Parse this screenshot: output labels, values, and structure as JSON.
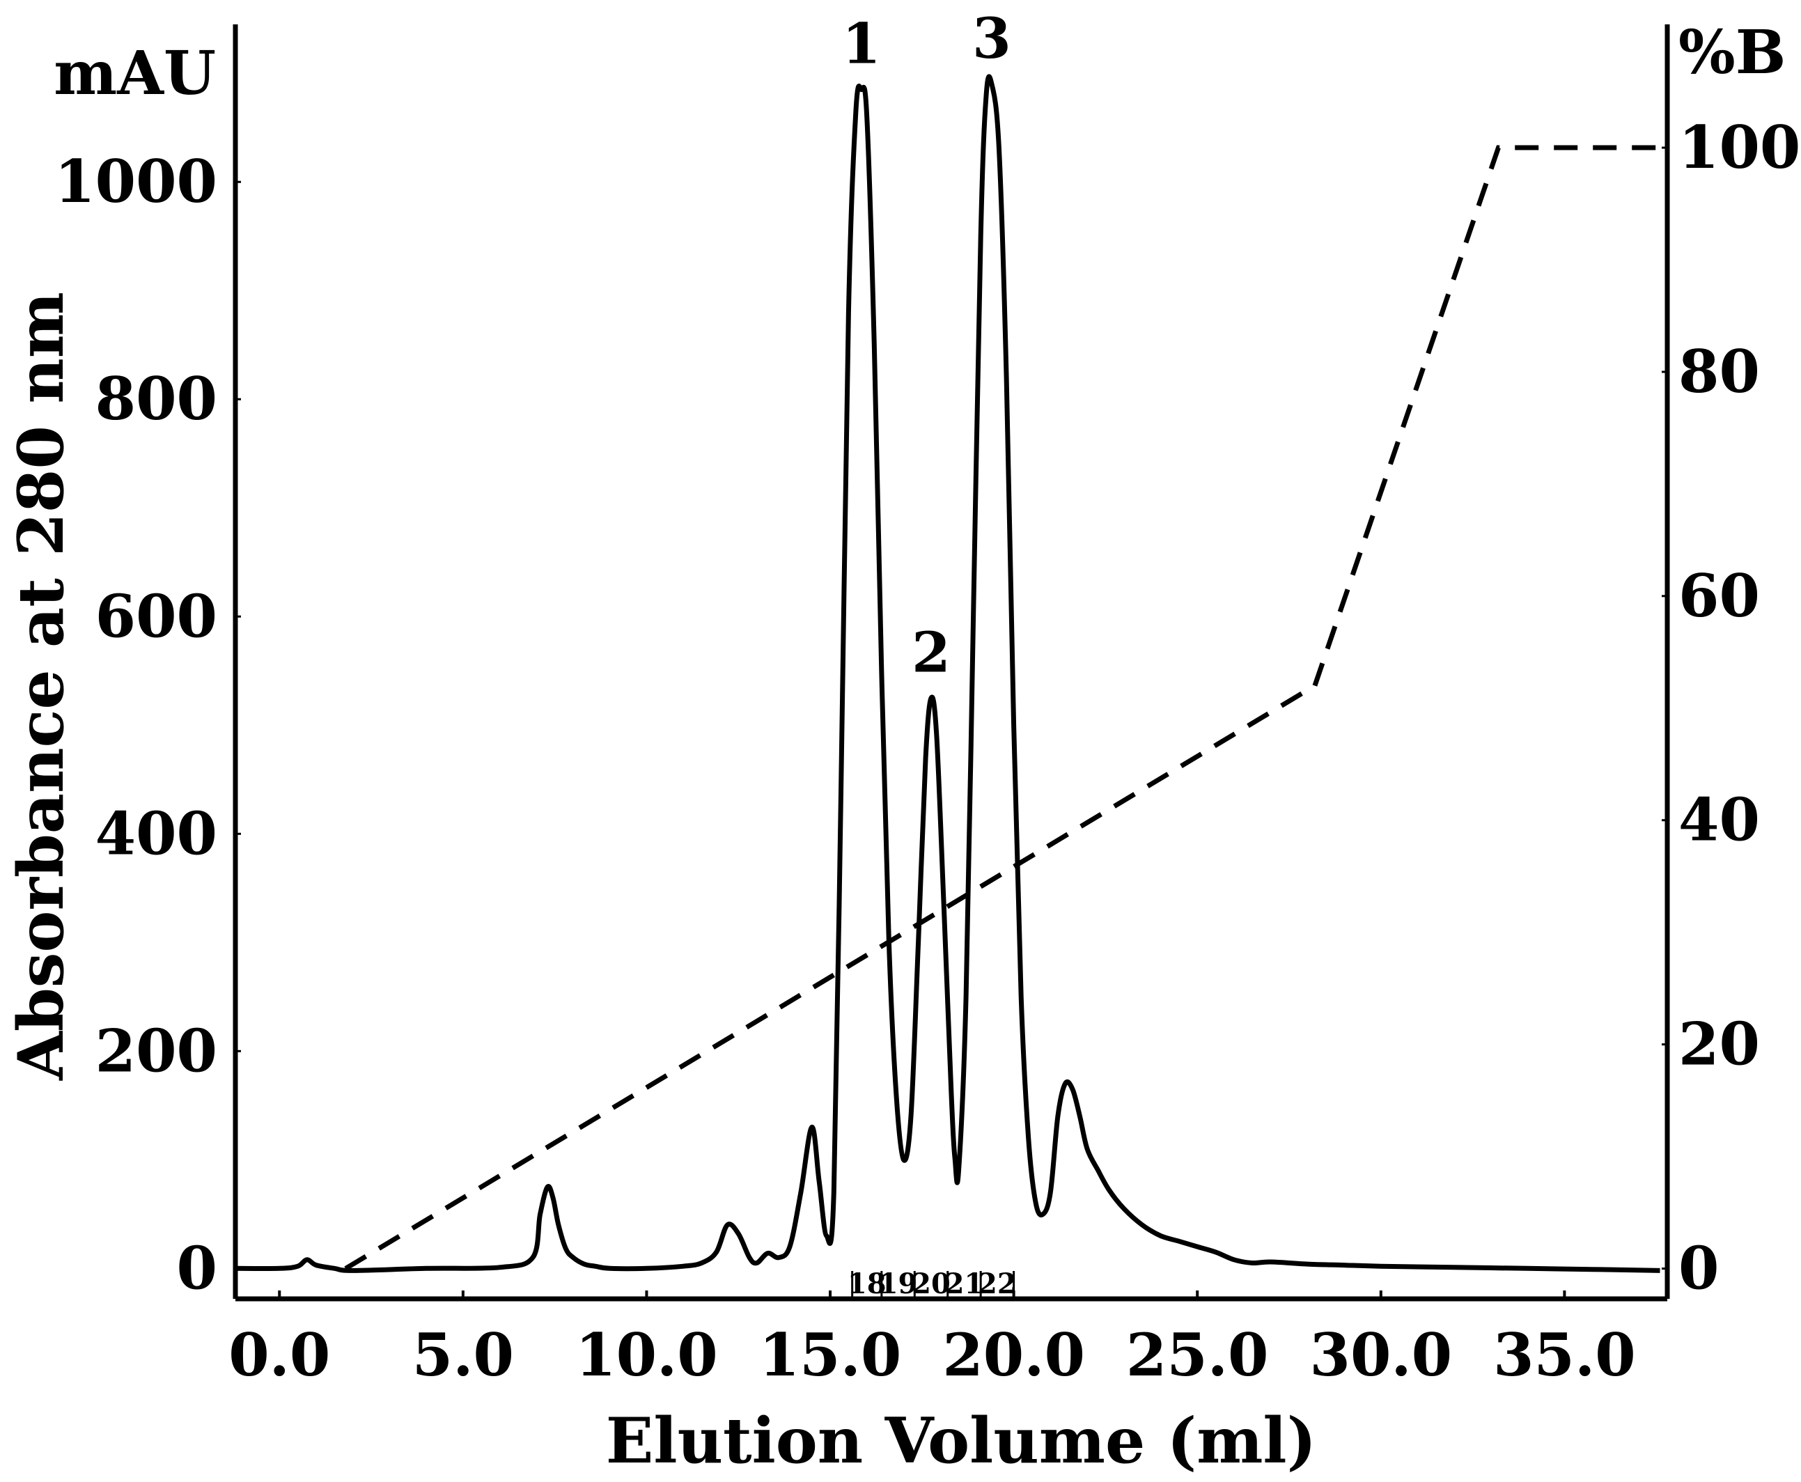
{
  "chart_data": {
    "type": "line",
    "title": "",
    "xlabel": "Elution Volume (ml)",
    "ylabel": "Absorbance at  280 nm",
    "y_unit": "mAU",
    "y2_unit": "%B",
    "xlim": [
      -1.2,
      37.8
    ],
    "ylim": [
      -28,
      1145
    ],
    "y2lim": [
      -2.7,
      111.0
    ],
    "x_ticks": [
      0,
      5,
      10,
      15,
      20,
      25,
      30,
      35
    ],
    "x_tick_labels": [
      "0.0",
      "5.0",
      "10.0",
      "15.0",
      "20.0",
      "25.0",
      "30.0",
      "35.0"
    ],
    "y_ticks": [
      0,
      200,
      400,
      600,
      800,
      1000
    ],
    "y_tick_labels": [
      "0",
      "200",
      "400",
      "600",
      "800",
      "1000"
    ],
    "y2_ticks": [
      0,
      20,
      40,
      60,
      80,
      100
    ],
    "y2_tick_labels": [
      "0",
      "20",
      "40",
      "60",
      "80",
      "100"
    ],
    "grid": false,
    "legend": "none",
    "series": [
      {
        "axis": "left",
        "style": "solid",
        "color": "#000000",
        "x": [
          -1.2,
          0.0,
          0.5,
          0.75,
          1.0,
          1.5,
          2.0,
          4.0,
          6.0,
          6.9,
          7.1,
          7.3,
          7.45,
          7.6,
          7.8,
          8.0,
          8.3,
          8.6,
          9.0,
          10.0,
          11.0,
          11.5,
          11.9,
          12.2,
          12.5,
          12.8,
          13.0,
          13.3,
          13.6,
          13.9,
          14.2,
          14.5,
          14.7,
          14.9,
          15.1,
          15.3,
          15.5,
          15.7,
          15.85,
          16.0,
          16.2,
          16.4,
          16.6,
          16.8,
          17.0,
          17.2,
          17.4,
          17.6,
          17.75,
          17.9,
          18.1,
          18.3,
          18.4,
          18.5,
          18.7,
          18.9,
          19.1,
          19.25,
          19.4,
          19.6,
          19.8,
          20.0,
          20.2,
          20.4,
          20.6,
          20.8,
          21.0,
          21.2,
          21.4,
          21.6,
          21.8,
          22.0,
          22.3,
          22.6,
          23.0,
          23.5,
          24.0,
          24.5,
          25.0,
          25.5,
          26.0,
          26.5,
          27.0,
          28.0,
          29.0,
          30.0,
          32.0,
          34.0,
          36.0,
          37.6
        ],
        "y": [
          0,
          0,
          2,
          8,
          3,
          0,
          -2,
          0,
          1,
          10,
          50,
          75,
          65,
          40,
          18,
          10,
          4,
          2,
          0,
          0,
          2,
          5,
          15,
          40,
          32,
          10,
          5,
          14,
          10,
          20,
          70,
          130,
          80,
          30,
          70,
          450,
          880,
          1065,
          1085,
          1060,
          850,
          550,
          300,
          160,
          100,
          140,
          300,
          470,
          525,
          490,
          330,
          160,
          100,
          90,
          250,
          600,
          950,
          1080,
          1090,
          1030,
          820,
          500,
          250,
          120,
          60,
          50,
          70,
          140,
          170,
          165,
          140,
          110,
          90,
          72,
          55,
          40,
          30,
          25,
          20,
          15,
          8,
          5,
          6,
          4,
          3,
          2,
          1,
          0,
          -1,
          -2
        ]
      },
      {
        "axis": "right",
        "style": "dashed",
        "color": "#000000",
        "x": [
          1.8,
          28.2,
          33.2,
          37.6
        ],
        "y": [
          0,
          52,
          100,
          100
        ]
      }
    ],
    "peak_labels": [
      {
        "text": "1",
        "x": 15.85,
        "y": 1085
      },
      {
        "text": "2",
        "x": 17.75,
        "y": 525
      },
      {
        "text": "3",
        "x": 19.4,
        "y": 1090
      }
    ],
    "fraction_markers": {
      "boundaries": [
        15.6,
        16.4,
        17.3,
        18.2,
        19.1,
        20.0
      ],
      "labels": [
        "18",
        "19",
        "20",
        "21",
        "22"
      ]
    }
  }
}
